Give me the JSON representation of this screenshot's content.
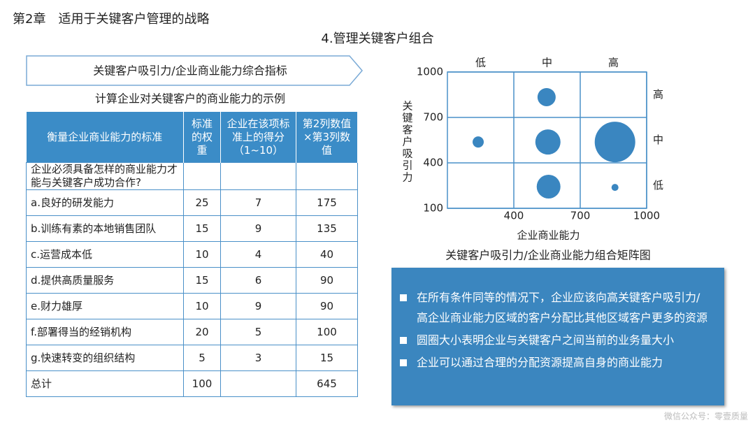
{
  "header": {
    "title": "第2章　适用于关键客户管理的战略",
    "section": "4.管理关键客户组合"
  },
  "banner": "关键客户吸引力/企业商业能力综合指标",
  "table_title": "计算企业对关键客户的商业能力的示例",
  "table": {
    "columns": [
      "衡量企业商业能力的标准",
      "标准的权重",
      "企业在该项标准上的得分（1~10）",
      "第2列数值×第3列数值"
    ],
    "rows": [
      {
        "criterion": "企业必须具备怎样的商业能力才能与关键客户成功合作?"
      },
      {
        "criterion": "a.良好的研发能力",
        "weight": 25,
        "score": 7,
        "product": 175
      },
      {
        "criterion": "b.训练有素的本地销售团队",
        "weight": 15,
        "score": 9,
        "product": 135
      },
      {
        "criterion": "c.运营成本低",
        "weight": 10,
        "score": 4,
        "product": 40
      },
      {
        "criterion": "d.提供高质量服务",
        "weight": 15,
        "score": 6,
        "product": 90
      },
      {
        "criterion": "e.财力雄厚",
        "weight": 10,
        "score": 9,
        "product": 90
      },
      {
        "criterion": "f.部署得当的经销机构",
        "weight": 20,
        "score": 5,
        "product": 100
      },
      {
        "criterion": "g.快速转变的组织结构",
        "weight": 5,
        "score": 3,
        "product": 15
      },
      {
        "criterion": "总计",
        "weight": 100,
        "product": 645
      }
    ]
  },
  "chart_data": {
    "type": "scatter",
    "y_label": "关键客户吸引力",
    "x_label": "企业商业能力",
    "caption": "关键客户吸引力/企业商业能力组合矩阵图",
    "x_categories": [
      "低",
      "中",
      "高"
    ],
    "y_categories": [
      "高",
      "中",
      "低"
    ],
    "xlim": [
      100,
      1000
    ],
    "ylim": [
      100,
      1000
    ],
    "xticks": [
      400,
      700,
      1000
    ],
    "yticks": [
      100,
      400,
      700,
      1000
    ],
    "grid": true,
    "color": "#3a86c0",
    "x": [
      239,
      548,
      554,
      857,
      557,
      857
    ],
    "values": [
      538,
      834,
      538,
      538,
      243,
      238
    ],
    "sizes": [
      8,
      13,
      18,
      29,
      17,
      5
    ]
  },
  "notes": [
    "在所有条件同等的情况下，企业应该向高关键客户吸引力/高企业商业能力区域的客户分配比其他区域客户更多的资源",
    "圆圈大小表明企业与关键客户之间当前的业务量大小",
    "企业可以通过合理的分配资源提高自身的商业能力"
  ],
  "watermark": "微信公众号：零壹质量"
}
